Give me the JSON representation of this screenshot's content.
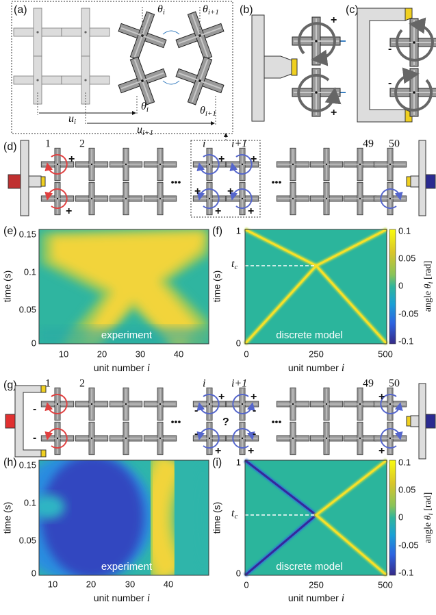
{
  "panel_a": {
    "label": "(a)",
    "symbols": [
      {
        "base": "θ",
        "sub": "i"
      },
      {
        "base": "θ",
        "sub": "i+1"
      },
      {
        "base": "θ",
        "sub": "i"
      },
      {
        "base": "θ",
        "sub": "i+1"
      },
      {
        "base": "u",
        "sub": "i"
      },
      {
        "base": "u",
        "sub": "i+1"
      }
    ]
  },
  "panel_b": {
    "label": "(b)",
    "signs": [
      "+",
      "+"
    ]
  },
  "panel_c": {
    "label": "(c)",
    "signs": [
      "-",
      "-"
    ]
  },
  "panel_d": {
    "label": "(d)",
    "unit_labels": [
      "1",
      "2",
      "i",
      "i+1",
      "49",
      "50"
    ],
    "ellipses": [
      "•••",
      "•••"
    ],
    "signs": [
      "+",
      "+",
      "+",
      "+",
      "+",
      "+",
      "+",
      "+"
    ]
  },
  "panel_e": {
    "label": "(e)",
    "ylabel": "time (s)",
    "yticks": [
      0,
      0.05,
      0.1,
      0.15
    ],
    "xticks": [
      10,
      20,
      30,
      40
    ],
    "xlabel": "unit number",
    "xlabel_var": "i",
    "caption": "experiment"
  },
  "panel_f": {
    "label": "(f)",
    "ylabel": "time (s)",
    "yticks": [
      0,
      1
    ],
    "tc": {
      "base": "t",
      "sub": "c"
    },
    "xticks": [
      0,
      250,
      500
    ],
    "xlabel": "unit number",
    "xlabel_var": "i",
    "caption": "discrete model",
    "colorbar_ticks": [
      0.1,
      0.05,
      0,
      -0.05,
      -0.1
    ],
    "colorbar_label": {
      "text": "angle",
      "base": "θ",
      "sub": "i",
      "unit": "[rad]"
    }
  },
  "panel_g": {
    "label": "(g)",
    "unit_labels": [
      "1",
      "2",
      "i",
      "i+1",
      "49",
      "50"
    ],
    "ellipses": [
      "•••",
      "•••"
    ],
    "signs": [
      "-",
      "-",
      "+",
      "+",
      "-",
      "-",
      "?",
      "-",
      "-",
      "+",
      "+",
      "+",
      "+"
    ]
  },
  "panel_h": {
    "label": "(h)",
    "ylabel": "time (s)",
    "yticks": [
      0,
      0.05,
      0.1,
      0.15
    ],
    "xticks": [
      10,
      20,
      30,
      40
    ],
    "xlabel": "unit number",
    "xlabel_var": "i",
    "caption": "experiment"
  },
  "panel_i": {
    "label": "(i)",
    "ylabel": "time (s)",
    "yticks": [
      0,
      1
    ],
    "tc": {
      "base": "t",
      "sub": "c"
    },
    "xticks": [
      0,
      250,
      500
    ],
    "xlabel": "unit number",
    "xlabel_var": "i",
    "caption": "discrete model",
    "colorbar_ticks": [
      0.1,
      0.05,
      0,
      -0.05,
      -0.1
    ],
    "colorbar_label": {
      "text": "angle",
      "base": "θ",
      "sub": "i",
      "unit": "[rad]"
    }
  }
}
